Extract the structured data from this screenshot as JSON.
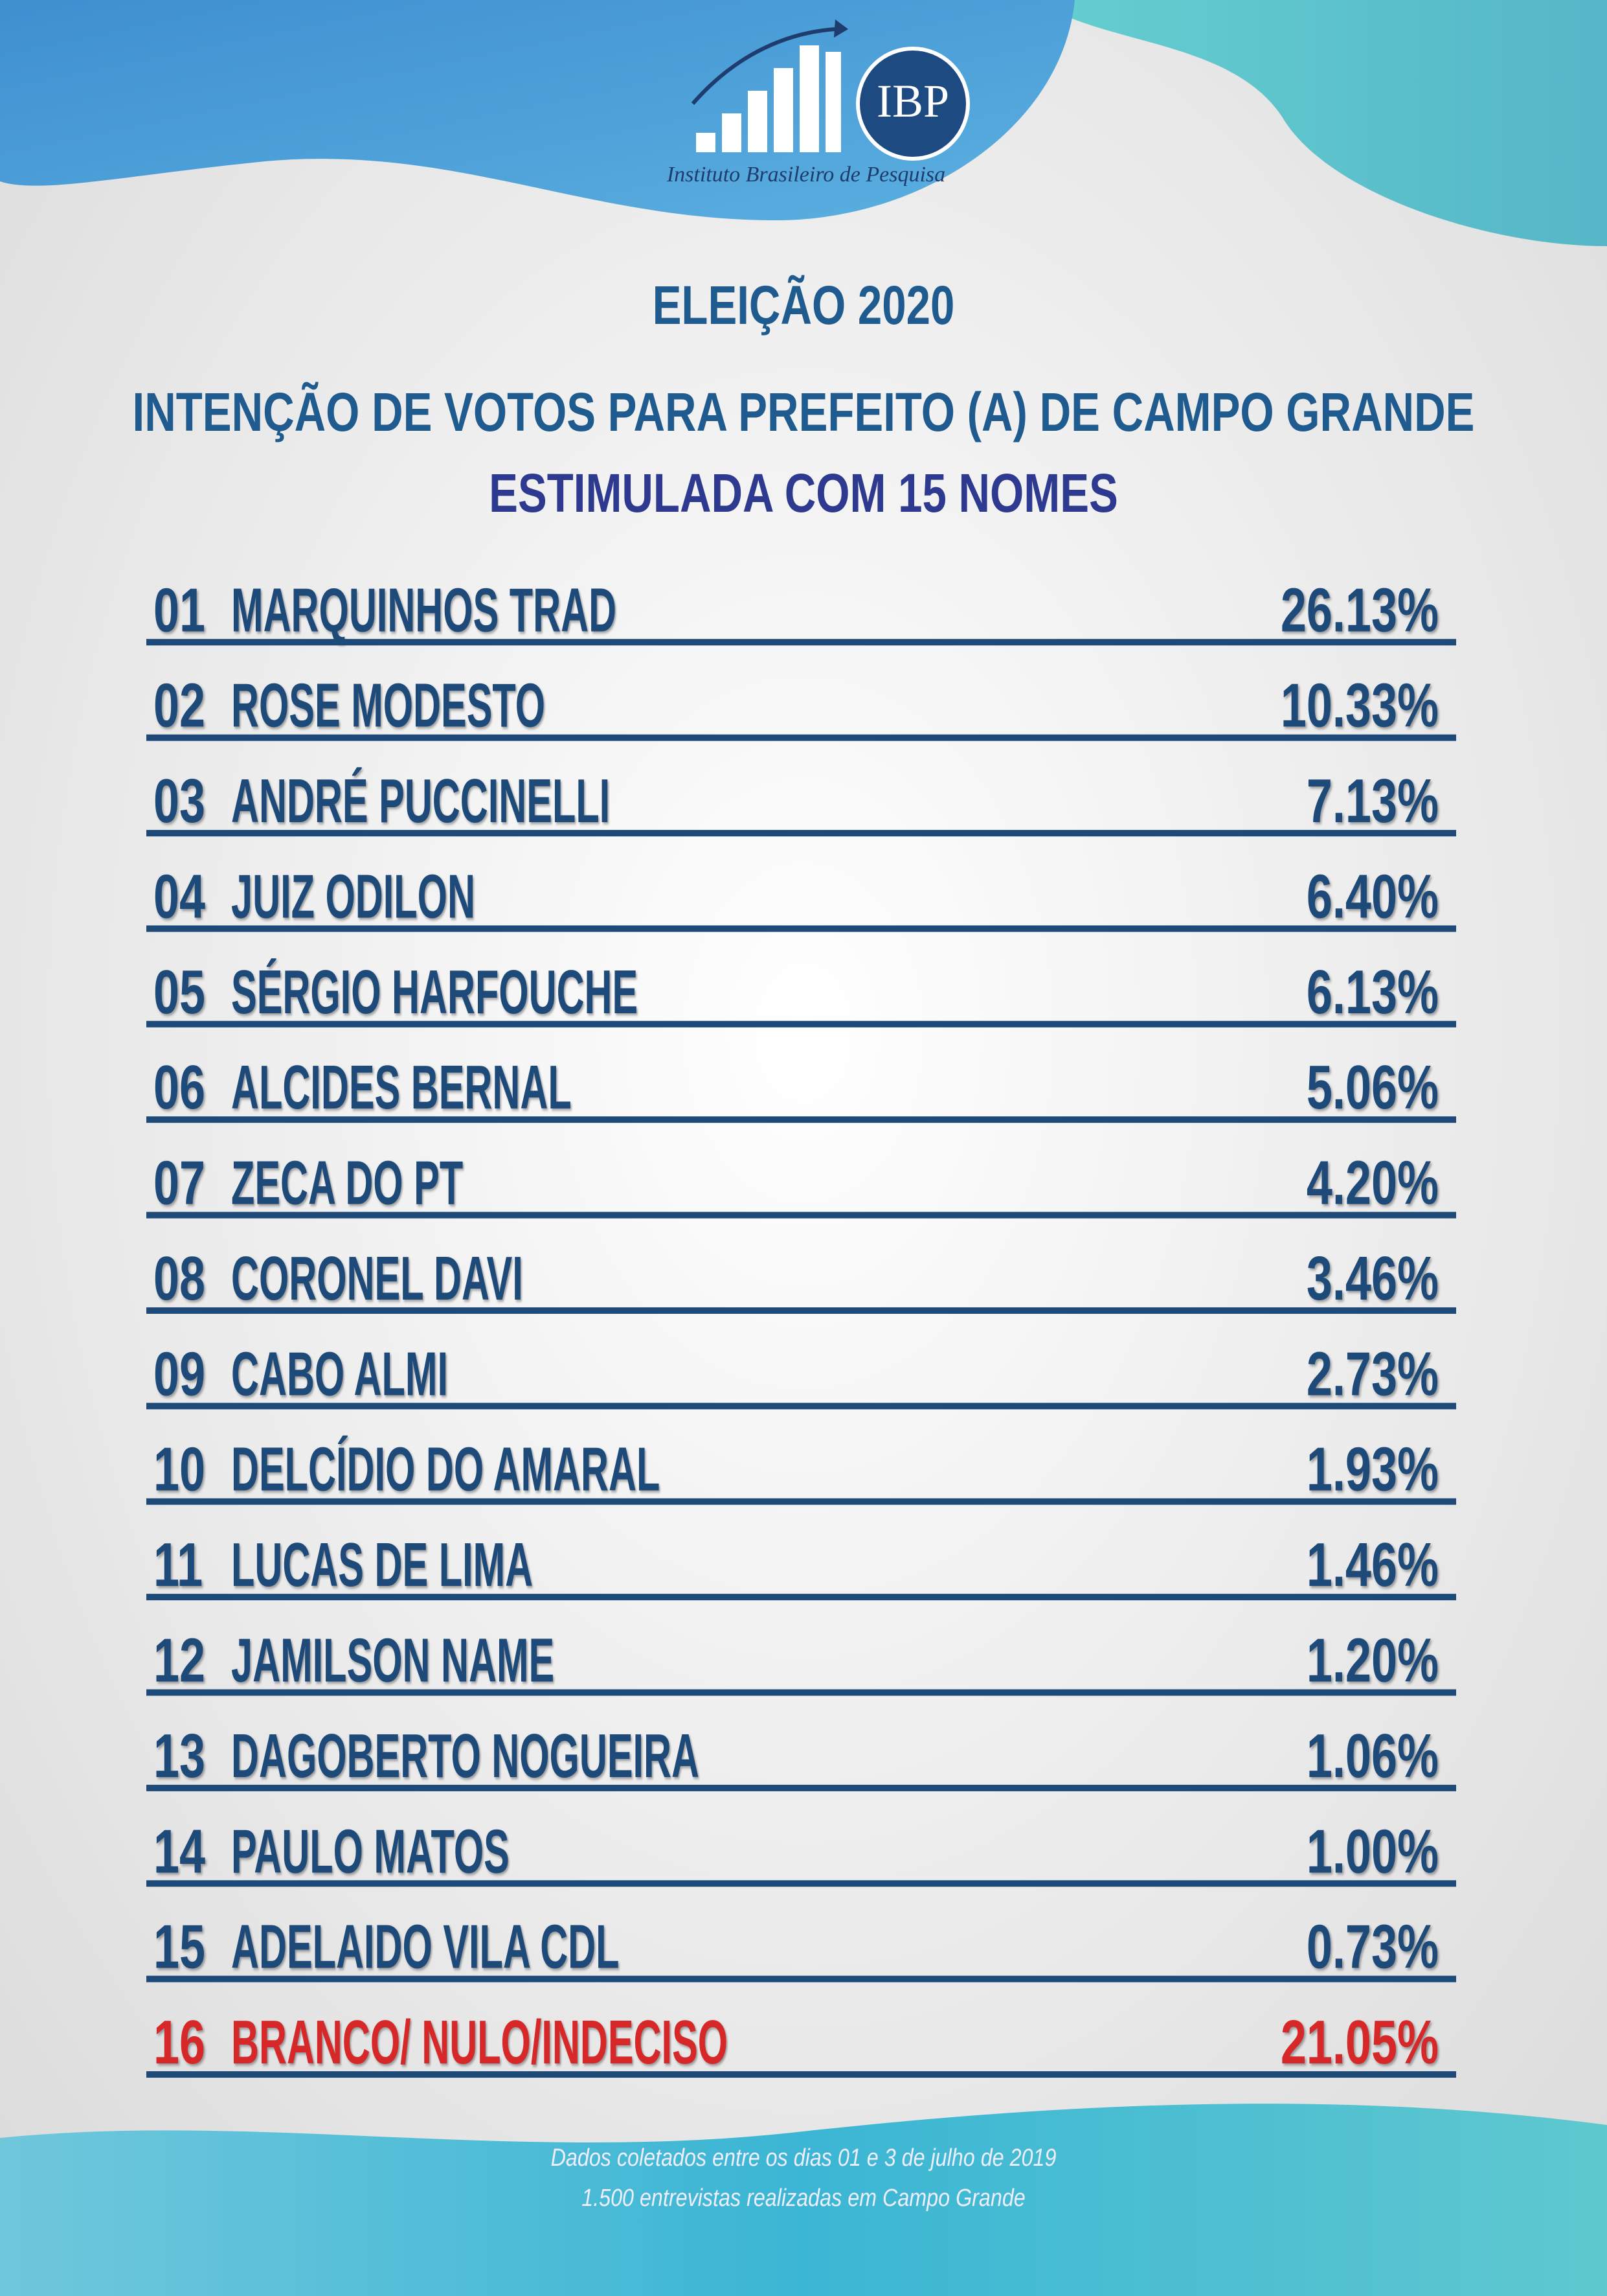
{
  "header": {
    "logo_text": "IBP",
    "logo_caption": "Instituto Brasileiro de Pesquisa",
    "title": "ELEIÇÃO 2020",
    "subtitle": "INTENÇÃO DE VOTOS PARA PREFEITO (A) DE CAMPO GRANDE",
    "subtitle2": "ESTIMULADA COM 15 NOMES"
  },
  "rows": [
    {
      "number": "01",
      "name": "MARQUINHOS TRAD",
      "value": "26.13%"
    },
    {
      "number": "02",
      "name": "ROSE MODESTO",
      "value": "10.33%"
    },
    {
      "number": "03",
      "name": "ANDRÉ PUCCINELLI",
      "value": "7.13%"
    },
    {
      "number": "04",
      "name": "JUIZ ODILON",
      "value": "6.40%"
    },
    {
      "number": "05",
      "name": "SÉRGIO HARFOUCHE",
      "value": "6.13%"
    },
    {
      "number": "06",
      "name": "ALCIDES BERNAL",
      "value": "5.06%"
    },
    {
      "number": "07",
      "name": "ZECA DO PT",
      "value": "4.20%"
    },
    {
      "number": "08",
      "name": "CORONEL DAVI",
      "value": "3.46%"
    },
    {
      "number": "09",
      "name": "CABO ALMI",
      "value": "2.73%"
    },
    {
      "number": "10",
      "name": "DELCÍDIO DO AMARAL",
      "value": "1.93%"
    },
    {
      "number": "11",
      "name": "LUCAS DE LIMA",
      "value": "1.46%"
    },
    {
      "number": "12",
      "name": "JAMILSON NAME",
      "value": "1.20%"
    },
    {
      "number": "13",
      "name": "DAGOBERTO NOGUEIRA",
      "value": "1.06%"
    },
    {
      "number": "14",
      "name": "PAULO MATOS",
      "value": "1.00%"
    },
    {
      "number": "15",
      "name": "ADELAIDO VILA CDL",
      "value": "0.73%"
    },
    {
      "number": "16",
      "name": "BRANCO/ NULO/INDECISO",
      "value": "21.05%"
    }
  ],
  "footer": {
    "line1": "Dados coletados entre os dias 01 e 3 de julho de 2019",
    "line2": "1.500 entrevistas realizadas em Campo Grande"
  }
}
